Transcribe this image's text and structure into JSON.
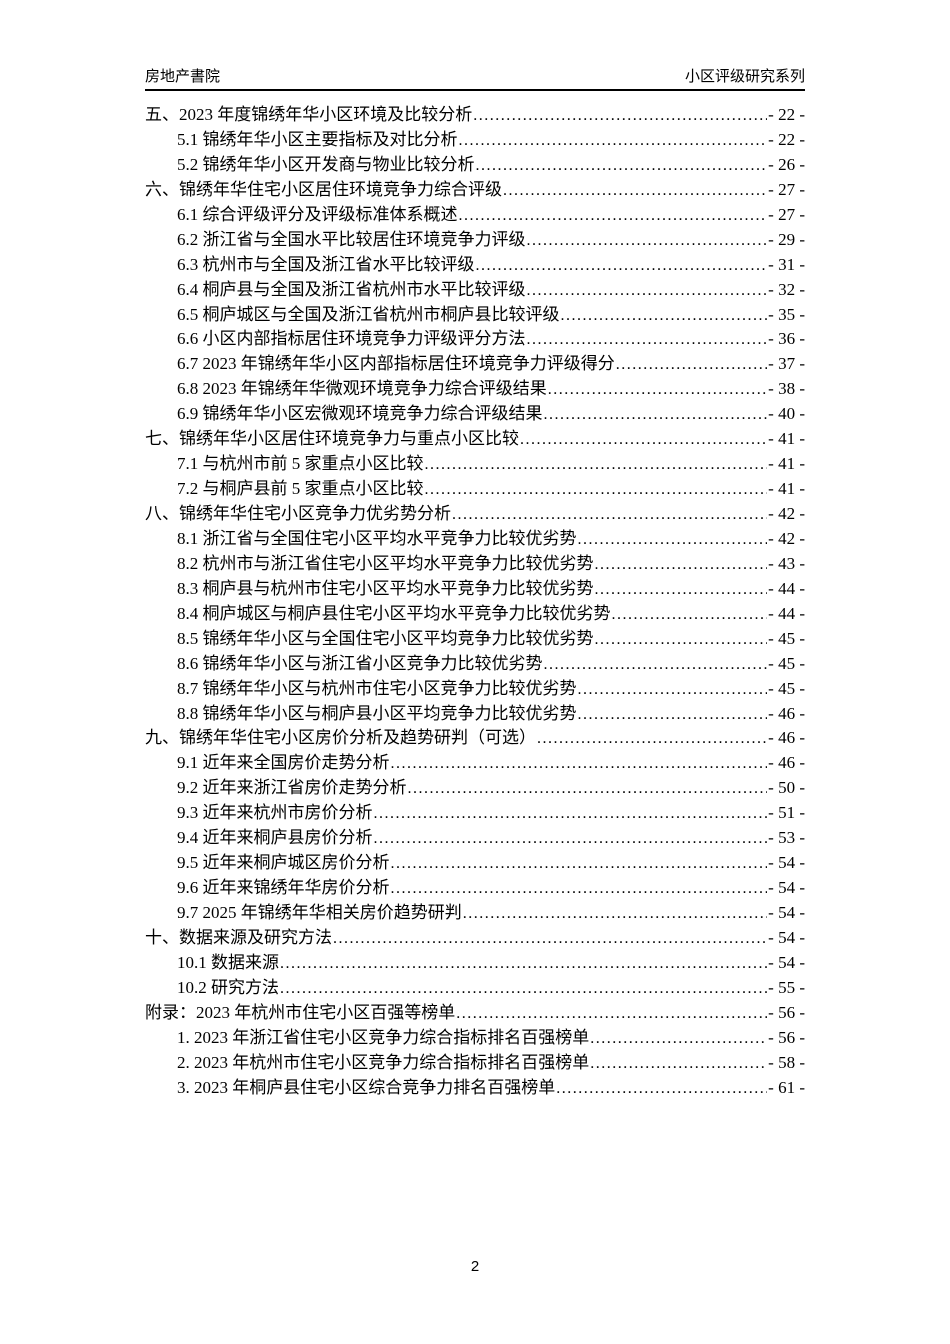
{
  "header": {
    "left": "房地产書院",
    "right": "小区评级研究系列"
  },
  "footer": {
    "page_number": "2"
  },
  "toc": {
    "entries": [
      {
        "level": 1,
        "label": "五、2023 年度锦绣年华小区环境及比较分析",
        "page": "- 22 -"
      },
      {
        "level": 2,
        "label": "5.1 锦绣年华小区主要指标及对比分析",
        "page": "- 22 -"
      },
      {
        "level": 2,
        "label": "5.2 锦绣年华小区开发商与物业比较分析",
        "page": "- 26 -"
      },
      {
        "level": 1,
        "label": "六、锦绣年华住宅小区居住环境竞争力综合评级",
        "page": "- 27 -"
      },
      {
        "level": 2,
        "label": "6.1 综合评级评分及评级标准体系概述",
        "page": "- 27 -"
      },
      {
        "level": 2,
        "label": "6.2 浙江省与全国水平比较居住环境竞争力评级",
        "page": "- 29 -"
      },
      {
        "level": 2,
        "label": "6.3 杭州市与全国及浙江省水平比较评级",
        "page": "- 31 -"
      },
      {
        "level": 2,
        "label": "6.4 桐庐县与全国及浙江省杭州市水平比较评级",
        "page": "- 32 -"
      },
      {
        "level": 2,
        "label": "6.5 桐庐城区与全国及浙江省杭州市桐庐县比较评级",
        "page": "- 35 -"
      },
      {
        "level": 2,
        "label": "6.6 小区内部指标居住环境竞争力评级评分方法",
        "page": "- 36 -"
      },
      {
        "level": 2,
        "label": "6.7 2023 年锦绣年华小区内部指标居住环境竞争力评级得分",
        "page": "- 37 -"
      },
      {
        "level": 2,
        "label": "6.8 2023 年锦绣年华微观环境竞争力综合评级结果",
        "page": "- 38 -"
      },
      {
        "level": 2,
        "label": "6.9 锦绣年华小区宏微观环境竞争力综合评级结果",
        "page": "- 40 -"
      },
      {
        "level": 1,
        "label": "七、锦绣年华小区居住环境竞争力与重点小区比较",
        "page": "- 41 -"
      },
      {
        "level": 2,
        "label": "7.1 与杭州市前 5 家重点小区比较",
        "page": "- 41 -"
      },
      {
        "level": 2,
        "label": "7.2 与桐庐县前 5 家重点小区比较",
        "page": "- 41 -"
      },
      {
        "level": 1,
        "label": "八、锦绣年华住宅小区竞争力优劣势分析",
        "page": "- 42 -"
      },
      {
        "level": 2,
        "label": "8.1 浙江省与全国住宅小区平均水平竞争力比较优劣势",
        "page": "- 42 -"
      },
      {
        "level": 2,
        "label": "8.2 杭州市与浙江省住宅小区平均水平竞争力比较优劣势",
        "page": "- 43 -"
      },
      {
        "level": 2,
        "label": "8.3 桐庐县与杭州市住宅小区平均水平竞争力比较优劣势",
        "page": "- 44 -"
      },
      {
        "level": 2,
        "label": "8.4 桐庐城区与桐庐县住宅小区平均水平竞争力比较优劣势",
        "page": "- 44 -"
      },
      {
        "level": 2,
        "label": "8.5 锦绣年华小区与全国住宅小区平均竞争力比较优劣势",
        "page": "- 45 -"
      },
      {
        "level": 2,
        "label": "8.6 锦绣年华小区与浙江省小区竞争力比较优劣势",
        "page": "- 45 -"
      },
      {
        "level": 2,
        "label": "8.7 锦绣年华小区与杭州市住宅小区竞争力比较优劣势",
        "page": "- 45 -"
      },
      {
        "level": 2,
        "label": "8.8 锦绣年华小区与桐庐县小区平均竞争力比较优劣势",
        "page": "- 46 -"
      },
      {
        "level": 1,
        "label": "九、锦绣年华住宅小区房价分析及趋势研判（可选）",
        "page": "- 46 -"
      },
      {
        "level": 2,
        "label": "9.1 近年来全国房价走势分析",
        "page": "- 46 -"
      },
      {
        "level": 2,
        "label": "9.2 近年来浙江省房价走势分析",
        "page": "- 50 -"
      },
      {
        "level": 2,
        "label": "9.3 近年来杭州市房价分析",
        "page": "- 51 -"
      },
      {
        "level": 2,
        "label": "9.4 近年来桐庐县房价分析",
        "page": "- 53 -"
      },
      {
        "level": 2,
        "label": "9.5 近年来桐庐城区房价分析",
        "page": "- 54 -"
      },
      {
        "level": 2,
        "label": "9.6 近年来锦绣年华房价分析",
        "page": "- 54 -"
      },
      {
        "level": 2,
        "label": "9.7 2025 年锦绣年华相关房价趋势研判",
        "page": "- 54 -"
      },
      {
        "level": 1,
        "label": "十、数据来源及研究方法",
        "page": "- 54 -"
      },
      {
        "level": 2,
        "label": "10.1 数据来源",
        "page": "- 54 -"
      },
      {
        "level": 2,
        "label": "10.2 研究方法",
        "page": "- 55 -"
      },
      {
        "level": 1,
        "label": "附录：2023 年杭州市住宅小区百强等榜单",
        "page": "- 56 -"
      },
      {
        "level": 2,
        "label": "1. 2023 年浙江省住宅小区竞争力综合指标排名百强榜单",
        "page": "- 56 -"
      },
      {
        "level": 2,
        "label": "2. 2023 年杭州市住宅小区竞争力综合指标排名百强榜单",
        "page": "- 58 -"
      },
      {
        "level": 2,
        "label": "3. 2023 年桐庐县住宅小区综合竞争力排名百强榜单",
        "page": "- 61 -"
      }
    ]
  }
}
